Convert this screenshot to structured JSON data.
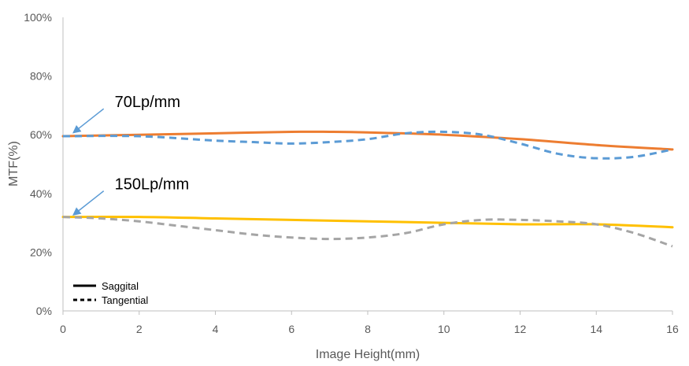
{
  "chart_data": {
    "type": "line",
    "xlabel": "Image Height(mm)",
    "ylabel": "MTF(%)",
    "xlim": [
      0,
      16
    ],
    "ylim": [
      0,
      100
    ],
    "x_ticks": [
      "0",
      "2",
      "4",
      "6",
      "8",
      "10",
      "12",
      "14",
      "16"
    ],
    "y_ticks": [
      "0%",
      "20%",
      "40%",
      "60%",
      "80%",
      "100%"
    ],
    "grid": false,
    "series": [
      {
        "group": "70Lp/mm",
        "style": "Saggital",
        "color": "#ED7D31",
        "x": [
          0,
          2,
          4,
          6,
          7,
          8,
          10,
          12,
          14,
          16
        ],
        "y": [
          59.5,
          60,
          60.5,
          61,
          61,
          60.8,
          60,
          58.5,
          56.5,
          55
        ]
      },
      {
        "group": "70Lp/mm",
        "style": "Tangential",
        "color": "#5B9BD5",
        "x": [
          0,
          2,
          4,
          5,
          6,
          7,
          8,
          9,
          10,
          11,
          12,
          13,
          14,
          15,
          16
        ],
        "y": [
          59.5,
          59.5,
          58,
          57.5,
          57,
          57.5,
          58.5,
          60.5,
          61,
          60,
          57,
          53.5,
          52,
          52.5,
          55
        ]
      },
      {
        "group": "150Lp/mm",
        "style": "Saggital",
        "color": "#FFC000",
        "x": [
          0,
          2,
          4,
          6,
          8,
          10,
          12,
          14,
          16
        ],
        "y": [
          32,
          32,
          31.5,
          31,
          30.5,
          30,
          29.5,
          29.5,
          28.5
        ]
      },
      {
        "group": "150Lp/mm",
        "style": "Tangential",
        "color": "#A5A5A5",
        "x": [
          0,
          1,
          2,
          3,
          4,
          5,
          6,
          7,
          8,
          9,
          10,
          11,
          12,
          13,
          14,
          15,
          16
        ],
        "y": [
          32,
          31.5,
          30.5,
          29,
          27.5,
          26,
          25,
          24.5,
          25,
          26.5,
          29.5,
          31,
          31,
          30.5,
          29.5,
          26.5,
          22
        ]
      }
    ],
    "annotations": [
      {
        "text": "70Lp/mm",
        "points_to": {
          "x": 0.2,
          "y": 60
        }
      },
      {
        "text": "150Lp/mm",
        "points_to": {
          "x": 0.2,
          "y": 32
        }
      }
    ],
    "legend": {
      "position": "bottom-left",
      "entries": [
        {
          "label": "Saggital",
          "line": "solid"
        },
        {
          "label": "Tangential",
          "line": "dashed"
        }
      ]
    }
  }
}
